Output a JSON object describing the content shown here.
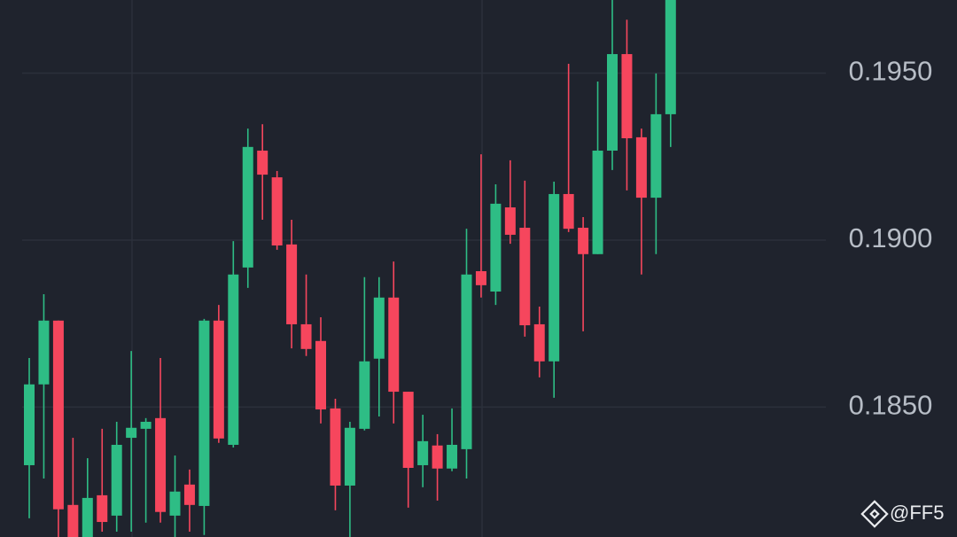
{
  "chart_data": {
    "type": "candlestick",
    "ylim": [
      0.18111,
      0.19719
    ],
    "yticks": [
      {
        "value": 0.195,
        "label": "0.1950"
      },
      {
        "value": 0.19,
        "label": "0.1900"
      },
      {
        "value": 0.185,
        "label": "0.1850"
      }
    ],
    "grid": true,
    "up_color": "#2ebd85",
    "down_color": "#f6465d",
    "open": [
      0.18326,
      0.18568,
      0.18759,
      0.18207,
      0.181,
      0.18236,
      0.18175,
      0.18408,
      0.18435,
      0.18467,
      0.18175,
      0.18268,
      0.18204,
      0.18759,
      0.18387,
      0.18918,
      0.19268,
      0.19188,
      0.18987,
      0.18748,
      0.18698,
      0.18496,
      0.18265,
      0.18435,
      0.18645,
      0.18828,
      0.18546,
      0.18326,
      0.18385,
      0.18316,
      0.18374,
      0.18907,
      0.18846,
      0.19098,
      0.19037,
      0.18748,
      0.18637,
      0.19138,
      0.19037,
      0.18958,
      0.19268,
      0.19557,
      0.19308,
      0.19127,
      0.19377
    ],
    "high": [
      0.18647,
      0.18838,
      0.18759,
      0.18408,
      0.18347,
      0.18435,
      0.18456,
      0.18668,
      0.18467,
      0.18647,
      0.18355,
      0.18313,
      0.18764,
      0.18806,
      0.18997,
      0.19334,
      0.19347,
      0.19207,
      0.19061,
      0.18897,
      0.18769,
      0.18525,
      0.18456,
      0.18889,
      0.18889,
      0.18936,
      0.18546,
      0.18477,
      0.18419,
      0.18496,
      0.19034,
      0.19257,
      0.19167,
      0.19239,
      0.19178,
      0.18801,
      0.19175,
      0.19528,
      0.19069,
      0.19475,
      0.1973,
      0.1966,
      0.19334,
      0.19499,
      0.1975
    ],
    "low": [
      0.18167,
      0.18286,
      0.181,
      0.181,
      0.181,
      0.18127,
      0.18127,
      0.18127,
      0.18154,
      0.18154,
      0.181,
      0.18127,
      0.18117,
      0.18393,
      0.18379,
      0.18857,
      0.19061,
      0.18971,
      0.18676,
      0.18653,
      0.18451,
      0.18191,
      0.181,
      0.1843,
      0.18472,
      0.18451,
      0.18199,
      0.1826,
      0.1822,
      0.18308,
      0.18286,
      0.18828,
      0.18806,
      0.18989,
      0.18711,
      0.18589,
      0.18528,
      0.19024,
      0.18727,
      0.18958,
      0.1921,
      0.19149,
      0.18897,
      0.18958,
      0.19279
    ],
    "close": [
      0.18568,
      0.18759,
      0.18194,
      0.181,
      0.18228,
      0.18156,
      0.18387,
      0.18438,
      0.18456,
      0.18186,
      0.18247,
      0.18207,
      0.18759,
      0.18406,
      0.18897,
      0.19279,
      0.19196,
      0.18984,
      0.18748,
      0.18674,
      0.18493,
      0.18265,
      0.18438,
      0.18637,
      0.18828,
      0.18546,
      0.18318,
      0.18398,
      0.18316,
      0.18387,
      0.18897,
      0.18865,
      0.19109,
      0.19016,
      0.18745,
      0.18637,
      0.19138,
      0.19034,
      0.18958,
      0.19268,
      0.19557,
      0.19305,
      0.19127,
      0.19377,
      0.1975
    ],
    "watermark": "@FF5"
  }
}
